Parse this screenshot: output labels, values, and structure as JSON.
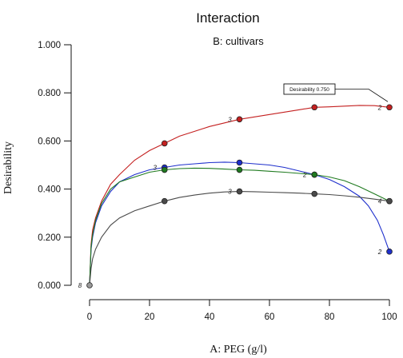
{
  "chart_data": {
    "type": "line",
    "title": "Interaction",
    "subtitle": "B: cultivars",
    "xlabel": "A: PEG (g/l)",
    "ylabel": "Desirability",
    "xlim": [
      0,
      100
    ],
    "ylim": [
      0,
      1
    ],
    "x_ticks": [
      "0",
      "20",
      "40",
      "60",
      "80",
      "100"
    ],
    "y_ticks": [
      "0.000",
      "0.200",
      "0.400",
      "0.600",
      "0.800",
      "1.000"
    ],
    "grid": false,
    "annotation": {
      "text": "Desirability 0.750",
      "x": 100,
      "y": 0.75
    },
    "origin_point": {
      "x": 0,
      "y": 0,
      "label": "8"
    },
    "series": [
      {
        "color": "#c42020",
        "points": [
          {
            "x": 25,
            "y": 0.59
          },
          {
            "x": 50,
            "y": 0.69
          },
          {
            "x": 75,
            "y": 0.74
          },
          {
            "x": 100,
            "y": 0.74
          }
        ],
        "point_labels": [
          {
            "x": 50,
            "y": 0.69,
            "text": "3"
          },
          {
            "x": 100,
            "y": 0.74,
            "text": "2"
          }
        ],
        "curve": [
          [
            0,
            0
          ],
          [
            0.5,
            0.17
          ],
          [
            1,
            0.23
          ],
          [
            2,
            0.28
          ],
          [
            4,
            0.35
          ],
          [
            7,
            0.42
          ],
          [
            10,
            0.46
          ],
          [
            15,
            0.52
          ],
          [
            20,
            0.56
          ],
          [
            25,
            0.59
          ],
          [
            30,
            0.62
          ],
          [
            35,
            0.64
          ],
          [
            40,
            0.66
          ],
          [
            45,
            0.675
          ],
          [
            50,
            0.69
          ],
          [
            55,
            0.7
          ],
          [
            60,
            0.71
          ],
          [
            65,
            0.72
          ],
          [
            70,
            0.73
          ],
          [
            75,
            0.74
          ],
          [
            80,
            0.742
          ],
          [
            85,
            0.745
          ],
          [
            90,
            0.748
          ],
          [
            95,
            0.747
          ],
          [
            100,
            0.74
          ]
        ]
      },
      {
        "color": "#1e2fcc",
        "points": [
          {
            "x": 25,
            "y": 0.49
          },
          {
            "x": 50,
            "y": 0.51
          },
          {
            "x": 75,
            "y": 0.46
          },
          {
            "x": 100,
            "y": 0.14
          }
        ],
        "point_labels": [
          {
            "x": 25,
            "y": 0.49,
            "text": "3"
          },
          {
            "x": 75,
            "y": 0.46,
            "text": "2"
          },
          {
            "x": 100,
            "y": 0.14,
            "text": "2"
          }
        ],
        "curve": [
          [
            0,
            0
          ],
          [
            0.5,
            0.15
          ],
          [
            1,
            0.2
          ],
          [
            2,
            0.26
          ],
          [
            4,
            0.33
          ],
          [
            7,
            0.39
          ],
          [
            10,
            0.43
          ],
          [
            15,
            0.46
          ],
          [
            20,
            0.48
          ],
          [
            25,
            0.49
          ],
          [
            30,
            0.5
          ],
          [
            35,
            0.505
          ],
          [
            40,
            0.51
          ],
          [
            45,
            0.512
          ],
          [
            50,
            0.51
          ],
          [
            55,
            0.505
          ],
          [
            60,
            0.5
          ],
          [
            65,
            0.49
          ],
          [
            70,
            0.475
          ],
          [
            75,
            0.46
          ],
          [
            80,
            0.44
          ],
          [
            85,
            0.41
          ],
          [
            90,
            0.37
          ],
          [
            93,
            0.33
          ],
          [
            96,
            0.27
          ],
          [
            98,
            0.21
          ],
          [
            100,
            0.14
          ]
        ]
      },
      {
        "color": "#1f7a1f",
        "points": [
          {
            "x": 25,
            "y": 0.48
          },
          {
            "x": 50,
            "y": 0.48
          },
          {
            "x": 75,
            "y": 0.46
          },
          {
            "x": 100,
            "y": 0.35
          }
        ],
        "point_labels": [
          {
            "x": 100,
            "y": 0.35,
            "text": "4"
          }
        ],
        "curve": [
          [
            0,
            0
          ],
          [
            0.5,
            0.16
          ],
          [
            1,
            0.21
          ],
          [
            2,
            0.27
          ],
          [
            4,
            0.34
          ],
          [
            7,
            0.4
          ],
          [
            10,
            0.43
          ],
          [
            15,
            0.45
          ],
          [
            20,
            0.47
          ],
          [
            25,
            0.48
          ],
          [
            30,
            0.485
          ],
          [
            35,
            0.487
          ],
          [
            40,
            0.486
          ],
          [
            45,
            0.483
          ],
          [
            50,
            0.48
          ],
          [
            55,
            0.478
          ],
          [
            60,
            0.474
          ],
          [
            65,
            0.47
          ],
          [
            70,
            0.465
          ],
          [
            75,
            0.46
          ],
          [
            80,
            0.45
          ],
          [
            85,
            0.435
          ],
          [
            90,
            0.41
          ],
          [
            95,
            0.38
          ],
          [
            100,
            0.35
          ]
        ]
      },
      {
        "color": "#4a4a4a",
        "points": [
          {
            "x": 25,
            "y": 0.35
          },
          {
            "x": 50,
            "y": 0.39
          },
          {
            "x": 75,
            "y": 0.38
          },
          {
            "x": 100,
            "y": 0.35
          }
        ],
        "point_labels": [
          {
            "x": 50,
            "y": 0.39,
            "text": "3"
          }
        ],
        "curve": [
          [
            0,
            0
          ],
          [
            0.5,
            0.07
          ],
          [
            1,
            0.11
          ],
          [
            2,
            0.15
          ],
          [
            4,
            0.2
          ],
          [
            7,
            0.25
          ],
          [
            10,
            0.28
          ],
          [
            15,
            0.31
          ],
          [
            20,
            0.33
          ],
          [
            25,
            0.35
          ],
          [
            30,
            0.365
          ],
          [
            35,
            0.375
          ],
          [
            40,
            0.383
          ],
          [
            45,
            0.388
          ],
          [
            50,
            0.39
          ],
          [
            55,
            0.389
          ],
          [
            60,
            0.387
          ],
          [
            65,
            0.385
          ],
          [
            70,
            0.383
          ],
          [
            75,
            0.38
          ],
          [
            80,
            0.377
          ],
          [
            85,
            0.372
          ],
          [
            90,
            0.366
          ],
          [
            95,
            0.358
          ],
          [
            100,
            0.35
          ]
        ]
      }
    ]
  }
}
